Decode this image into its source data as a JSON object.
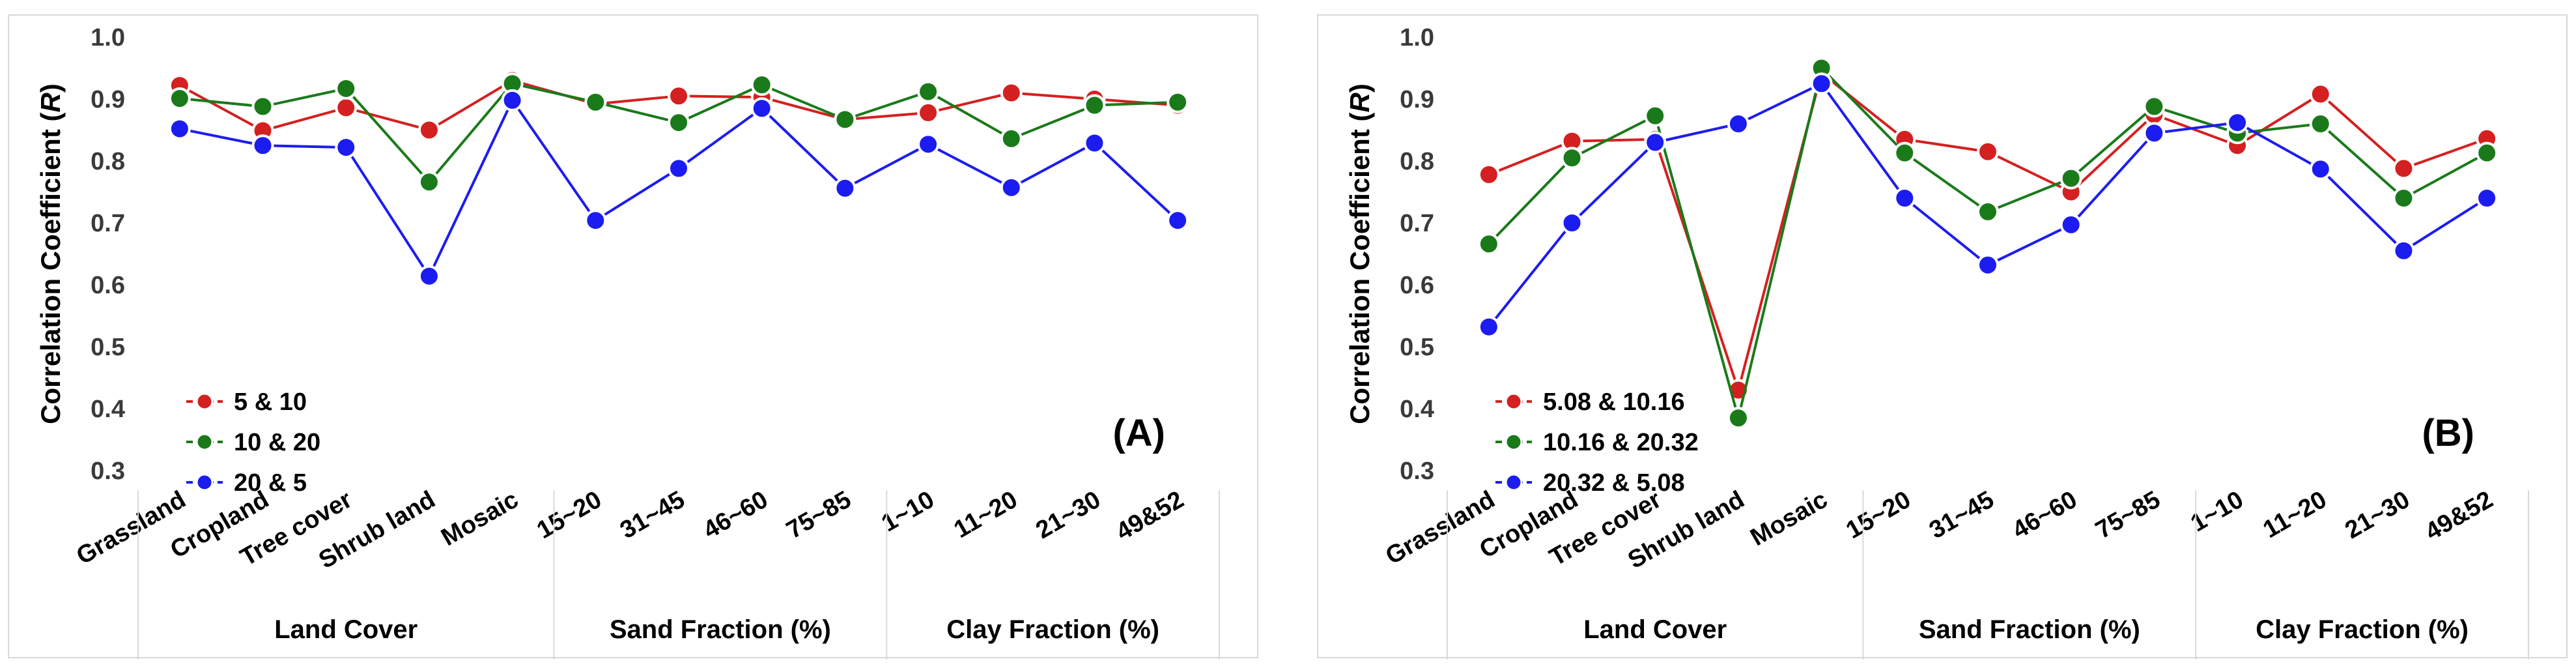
{
  "chart_data": [
    {
      "type": "line",
      "panel_label": "(A)",
      "ylabel": "Correlation Coefficient (R)",
      "ylabel_prefix": "Correlation Coefficient (",
      "ylabel_var": "R",
      "ylabel_suffix": ")",
      "ylim": [
        0.3,
        1.0
      ],
      "yticks": [
        "0.3",
        "0.4",
        "0.5",
        "0.6",
        "0.7",
        "0.8",
        "0.9",
        "1.0"
      ],
      "categories": [
        "Grassland",
        "Cropland",
        "Tree cover",
        "Shrub land",
        "Mosaic",
        "15~20",
        "31~45",
        "46~60",
        "75~85",
        "1~10",
        "11~20",
        "21~30",
        "49&52"
      ],
      "groups": [
        {
          "label": "Land Cover",
          "span": [
            0,
            4
          ]
        },
        {
          "label": "Sand Fraction (%)",
          "span": [
            5,
            8
          ]
        },
        {
          "label": "Clay Fraction (%)",
          "span": [
            9,
            12
          ]
        }
      ],
      "legend_position": "bottom-left",
      "series": [
        {
          "name": "5 & 10",
          "color": "#d42020",
          "values": [
            0.922,
            0.849,
            0.886,
            0.85,
            0.93,
            0.892,
            0.905,
            0.903,
            0.867,
            0.878,
            0.91,
            0.9,
            0.89
          ]
        },
        {
          "name": "10 & 20",
          "color": "#1a7a1a",
          "values": [
            0.901,
            0.888,
            0.917,
            0.766,
            0.925,
            0.895,
            0.862,
            0.923,
            0.867,
            0.912,
            0.836,
            0.89,
            0.895
          ]
        },
        {
          "name": "20 & 5",
          "color": "#1c1cf0",
          "values": [
            0.852,
            0.825,
            0.822,
            0.614,
            0.898,
            0.704,
            0.788,
            0.885,
            0.756,
            0.827,
            0.757,
            0.829,
            0.704
          ]
        }
      ]
    },
    {
      "type": "line",
      "panel_label": "(B)",
      "ylabel": "Correlation Coefficient (R)",
      "ylabel_prefix": "Correlation Coefficient (",
      "ylabel_var": "R",
      "ylabel_suffix": ")",
      "ylim": [
        0.3,
        1.0
      ],
      "yticks": [
        "0.3",
        "0.4",
        "0.5",
        "0.6",
        "0.7",
        "0.8",
        "0.9",
        "1.0"
      ],
      "categories": [
        "Grassland",
        "Cropland",
        "Tree cover",
        "Shrub land",
        "Mosaic",
        "15~20",
        "31~45",
        "46~60",
        "75~85",
        "1~10",
        "11~20",
        "21~30",
        "49&52"
      ],
      "groups": [
        {
          "label": "Land Cover",
          "span": [
            0,
            4
          ]
        },
        {
          "label": "Sand Fraction (%)",
          "span": [
            5,
            8
          ]
        },
        {
          "label": "Clay Fraction (%)",
          "span": [
            9,
            12
          ]
        }
      ],
      "legend_position": "bottom-left",
      "series": [
        {
          "name": "5.08 & 10.16",
          "color": "#d42020",
          "values": [
            0.778,
            0.832,
            0.835,
            0.43,
            0.942,
            0.835,
            0.815,
            0.75,
            0.875,
            0.825,
            0.908,
            0.788,
            0.836
          ]
        },
        {
          "name": "10.16 & 20.32",
          "color": "#1a7a1a",
          "values": [
            0.666,
            0.805,
            0.873,
            0.385,
            0.95,
            0.813,
            0.718,
            0.772,
            0.888,
            0.845,
            0.86,
            0.74,
            0.813
          ]
        },
        {
          "name": "20.32 & 5.08",
          "color": "#1c1cf0",
          "values": [
            0.532,
            0.7,
            0.83,
            0.86,
            0.925,
            0.74,
            0.632,
            0.697,
            0.845,
            0.862,
            0.787,
            0.655,
            0.74
          ]
        }
      ]
    }
  ]
}
